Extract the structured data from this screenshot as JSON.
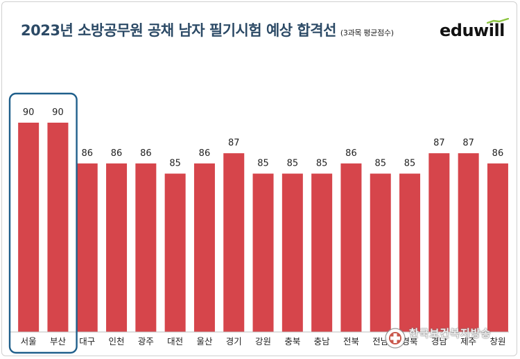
{
  "title": "2023년 소방공무원 공채 남자 필기시험 예상 합격선",
  "subtitle": "(3과목 평균점수)",
  "logo": "eduwill",
  "watermark": "한국보건복지방송",
  "colors": {
    "bar": "#d6454b",
    "highlight_box": "#1f5f8b",
    "title": "#2c4a66"
  },
  "chart_data": {
    "type": "bar",
    "categories": [
      "서울",
      "부산",
      "대구",
      "인천",
      "광주",
      "대전",
      "울산",
      "경기",
      "강원",
      "충북",
      "충남",
      "전북",
      "전남",
      "경북",
      "경남",
      "제주",
      "창원"
    ],
    "values": [
      90,
      90,
      86,
      86,
      86,
      85,
      86,
      87,
      85,
      85,
      85,
      86,
      85,
      85,
      87,
      87,
      86
    ],
    "highlighted_categories": [
      "서울",
      "부산"
    ],
    "title": "2023년 소방공무원 공채 남자 필기시험 예상 합격선",
    "subtitle": "(3과목 평균점수)",
    "xlabel": "",
    "ylabel": "",
    "grid": false,
    "legend": "none"
  }
}
